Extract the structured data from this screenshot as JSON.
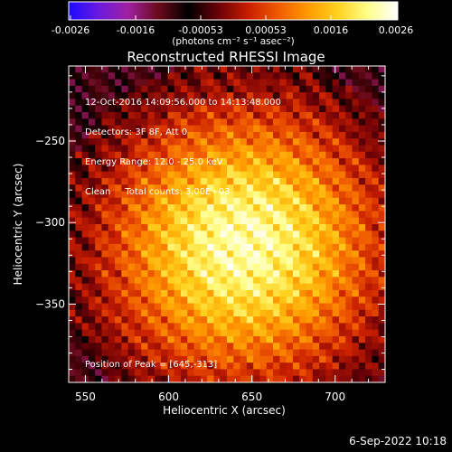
{
  "colorbar": {
    "tick_labels": [
      "-0.0026",
      "-0.0016",
      "-0.00053",
      "0.00053",
      "0.0016",
      "0.0026"
    ],
    "units": "(photons cm⁻² s⁻¹ asec⁻²)",
    "colors": [
      "#1a0aff",
      "#6a1adf",
      "#a020a0",
      "#6a0a1a",
      "#000000",
      "#6a0008",
      "#c81e00",
      "#f05a00",
      "#ff9a00",
      "#ffd21e",
      "#ffff8c",
      "#ffffff"
    ]
  },
  "chart_data": {
    "type": "heatmap",
    "title": "Reconstructed RHESSI Image",
    "xlabel": "Heliocentric X (arcsec)",
    "ylabel": "Heliocentric Y (arcsec)",
    "xlim": [
      540,
      730
    ],
    "ylim": [
      -398,
      -204
    ],
    "x_ticks": [
      550,
      600,
      650,
      700
    ],
    "y_ticks": [
      -250,
      -300,
      -350
    ],
    "annotations": {
      "time_range": "12-Oct-2016 14:09:56.000 to 14:13:48.000",
      "detectors": "Detectors: 3F 8F, Att 0",
      "energy": "Energy Range: 12.0 - 25.0 keV",
      "method": "Clean",
      "counts": "Total counts: 3.00E+03",
      "peak": "Position of Peak = [645,-313]"
    },
    "peak": {
      "x": 645,
      "y": -313
    }
  },
  "footer": {
    "date": "6-Sep-2022 10:18"
  }
}
